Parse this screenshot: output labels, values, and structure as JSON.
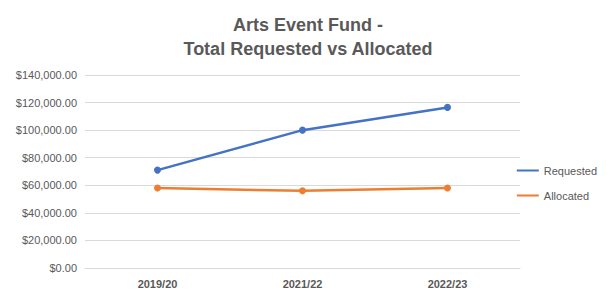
{
  "chart_data": {
    "type": "line",
    "title": "Arts Event Fund -\nTotal Requested vs Allocated",
    "categories": [
      "2019/20",
      "2021/22",
      "2022/23"
    ],
    "series": [
      {
        "name": "Requested",
        "color": "#4472c4",
        "values": [
          71000,
          100000,
          116500
        ]
      },
      {
        "name": "Allocated",
        "color": "#ed7d31",
        "values": [
          58000,
          56000,
          58000
        ]
      }
    ],
    "ylim": [
      0,
      140000
    ],
    "yticks": [
      {
        "value": 0,
        "label": "$0.00"
      },
      {
        "value": 20000,
        "label": "$20,000.00"
      },
      {
        "value": 40000,
        "label": "$40,000.00"
      },
      {
        "value": 60000,
        "label": "$60,000.00"
      },
      {
        "value": 80000,
        "label": "$80,000.00"
      },
      {
        "value": 100000,
        "label": "$100,000.00"
      },
      {
        "value": 120000,
        "label": "$120,000.00"
      },
      {
        "value": 140000,
        "label": "$140,000.00"
      }
    ],
    "grid": true,
    "legend": "right",
    "marker": "circle"
  }
}
